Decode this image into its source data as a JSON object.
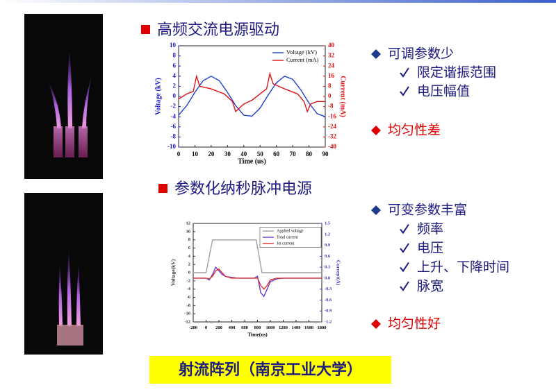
{
  "section1": {
    "heading": "高频交流电源驱动",
    "bullet": "可调参数少",
    "checks": [
      "限定谐振范围",
      "电压幅值"
    ],
    "conclusion": "均匀性差"
  },
  "section2": {
    "heading": "参数化纳秒脉冲电源",
    "bullet": "可变参数丰富",
    "checks": [
      "频率",
      "电压",
      "上升、下降时间",
      "脉宽"
    ],
    "conclusion": "均匀性好"
  },
  "footer": "射流阵列（南京工业大学）",
  "chart_data": [
    {
      "type": "line",
      "xlabel": "Time (us)",
      "ylabel": "Voltage (kV)",
      "y2label": "Current (mA)",
      "xlim": [
        0,
        90
      ],
      "xticks": [
        0,
        10,
        20,
        30,
        40,
        50,
        60,
        70,
        80,
        90
      ],
      "ylim": [
        -10,
        10
      ],
      "yticks": [
        -10,
        -8,
        -6,
        -4,
        -2,
        0,
        2,
        4,
        6,
        8,
        10
      ],
      "y2lim": [
        -40,
        40
      ],
      "y2ticks": [
        -40,
        -32,
        -24,
        -16,
        -8,
        0,
        8,
        16,
        24,
        32,
        40
      ],
      "y_axis_color": "#1a1ad0",
      "y2_axis_color": "#e01010",
      "series": [
        {
          "name": "Voltage (kV)",
          "color": "#1f3fd0",
          "x": [
            0,
            5,
            10,
            15,
            20,
            25,
            30,
            35,
            40,
            45,
            50,
            55,
            60,
            65,
            70,
            75,
            80,
            85,
            90
          ],
          "values": [
            -3.7,
            -1.8,
            0.8,
            3.1,
            4.0,
            3.1,
            0.8,
            -1.8,
            -3.7,
            -3.9,
            -2.3,
            0.3,
            2.7,
            4.0,
            3.4,
            1.3,
            -1.3,
            -3.4,
            -4.0
          ]
        },
        {
          "name": "Current (mA)",
          "color": "#e01010",
          "axis": "y2",
          "x": [
            0,
            5,
            9,
            11,
            13,
            20,
            28,
            33,
            35,
            40,
            45,
            50,
            54,
            56,
            58,
            65,
            73,
            77,
            79,
            81,
            85,
            90
          ],
          "values": [
            -2,
            2,
            4,
            16,
            8,
            6,
            2,
            -4,
            -12,
            -6,
            -3,
            2,
            6,
            18,
            10,
            6,
            2,
            -4,
            -12,
            -6,
            -4,
            -4
          ]
        }
      ]
    },
    {
      "type": "line",
      "xlabel": "Time(ns)",
      "ylabel": "Voltage(kV)",
      "y2label": "Current(A)",
      "xlim": [
        -200,
        1800
      ],
      "xticks": [
        -200,
        0,
        200,
        400,
        600,
        800,
        1000,
        1200,
        1400,
        1600,
        1800
      ],
      "ylim": [
        -12,
        12
      ],
      "yticks": [
        -12,
        -10,
        -8,
        -6,
        -4,
        -2,
        0,
        2,
        4,
        6,
        8,
        10,
        12
      ],
      "y2lim": [
        -1.2,
        1.5
      ],
      "y2ticks": [
        -1.2,
        -0.9,
        -0.6,
        -0.3,
        {
          "value": 0,
          "label": "0.0"
        },
        0.3,
        0.6,
        0.9,
        1.2,
        1.5
      ],
      "y_axis_color": "#333333",
      "y2_axis_color": "#3a3ab0",
      "series": [
        {
          "name": "Applied voltage",
          "color": "#a0a0a0",
          "x": [
            -200,
            0,
            100,
            780,
            870,
            1800
          ],
          "values": [
            0,
            0,
            8,
            8,
            0,
            0
          ]
        },
        {
          "name": "Total current",
          "color": "#6a3ad0",
          "axis": "y2",
          "x": [
            -200,
            0,
            50,
            100,
            150,
            200,
            250,
            300,
            400,
            500,
            600,
            700,
            750,
            800,
            850,
            900,
            950,
            1000,
            1100,
            1200,
            1400,
            1600,
            1800
          ],
          "values": [
            0,
            0,
            -0.05,
            0.1,
            0.3,
            0.2,
            0.1,
            0.05,
            0.02,
            0,
            0,
            0,
            0,
            0.05,
            -0.4,
            -0.5,
            -0.3,
            -0.1,
            -0.02,
            0,
            0,
            0,
            0
          ]
        },
        {
          "name": "Jet current",
          "color": "#e03030",
          "axis": "y2",
          "x": [
            -200,
            0,
            50,
            100,
            150,
            200,
            250,
            300,
            400,
            500,
            600,
            700,
            750,
            800,
            850,
            900,
            950,
            1000,
            1100,
            1200,
            1400,
            1600,
            1800
          ],
          "values": [
            0,
            0,
            -0.02,
            0.05,
            0.2,
            0.25,
            0.15,
            0.05,
            0,
            0,
            0,
            0,
            0,
            0,
            -0.2,
            -0.3,
            -0.2,
            -0.05,
            0,
            0,
            0,
            0,
            0
          ]
        }
      ]
    }
  ]
}
